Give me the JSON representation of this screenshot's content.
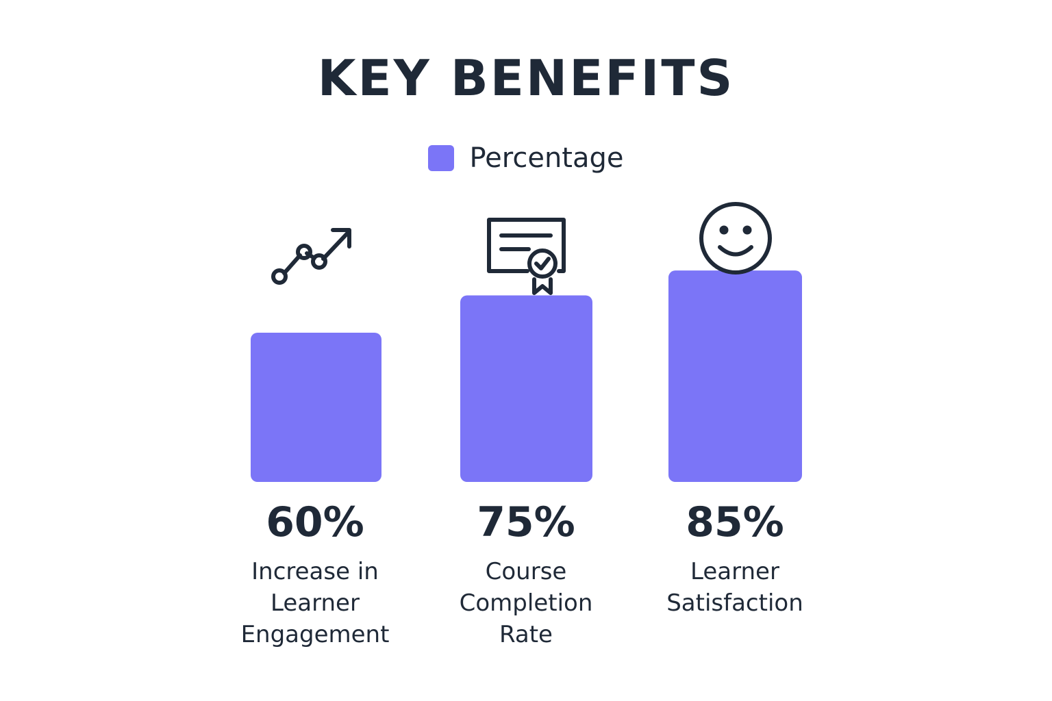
{
  "title": "KEY BENEFITS",
  "legend": {
    "label": "Percentage"
  },
  "colors": {
    "bar": "#7b75f7",
    "text": "#1f2937"
  },
  "chart_data": {
    "type": "bar",
    "title": "KEY BENEFITS",
    "categories": [
      "Increase in Learner Engagement",
      "Course Completion Rate",
      "Learner Satisfaction"
    ],
    "series": [
      {
        "name": "Percentage",
        "values": [
          60,
          75,
          85
        ]
      }
    ],
    "value_labels": [
      "60%",
      "75%",
      "85%"
    ],
    "icons": [
      "trending-up-icon",
      "certificate-icon",
      "smiley-icon"
    ],
    "legend_position": "top-center",
    "grid": false
  }
}
